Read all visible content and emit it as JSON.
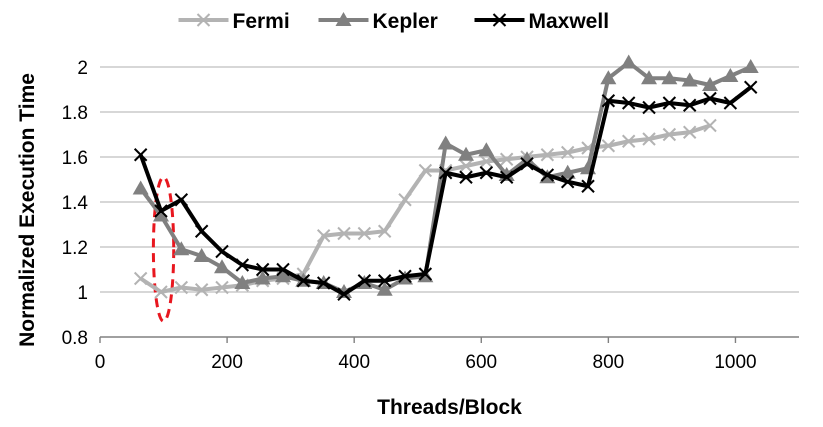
{
  "chart_data": {
    "type": "line",
    "title": "",
    "xlabel": "Threads/Block",
    "ylabel": "Normalized Execution Time",
    "xlim": [
      0,
      1100
    ],
    "ylim": [
      0.8,
      2.0
    ],
    "x_ticks": [
      0,
      200,
      400,
      600,
      800,
      1000
    ],
    "y_ticks": [
      0.8,
      1,
      1.2,
      1.4,
      1.6,
      1.8,
      2
    ],
    "x_tick_labels": [
      "0",
      "200",
      "400",
      "600",
      "800",
      "1000"
    ],
    "y_tick_labels": [
      "0.8",
      "1",
      "1.2",
      "1.4",
      "1.6",
      "1.8",
      "2"
    ],
    "grid": "horizontal",
    "legend_position": "top",
    "series": [
      {
        "name": "Fermi",
        "color": "#b3b3b3",
        "marker": "x",
        "x": [
          64,
          96,
          128,
          160,
          192,
          224,
          256,
          288,
          320,
          352,
          384,
          416,
          448,
          480,
          512,
          544,
          576,
          608,
          640,
          672,
          704,
          736,
          768,
          800,
          832,
          864,
          896,
          928,
          960
        ],
        "values": [
          1.06,
          1.0,
          1.02,
          1.01,
          1.02,
          1.03,
          1.05,
          1.06,
          1.08,
          1.25,
          1.26,
          1.26,
          1.27,
          1.41,
          1.54,
          1.54,
          1.56,
          1.58,
          1.59,
          1.6,
          1.61,
          1.62,
          1.64,
          1.65,
          1.67,
          1.68,
          1.7,
          1.71,
          1.74
        ]
      },
      {
        "name": "Kepler",
        "color": "#808080",
        "marker": "triangle",
        "x": [
          64,
          96,
          128,
          160,
          192,
          224,
          256,
          288,
          320,
          352,
          384,
          416,
          448,
          480,
          512,
          544,
          576,
          608,
          640,
          672,
          704,
          736,
          768,
          800,
          832,
          864,
          896,
          928,
          960,
          992,
          1024
        ],
        "values": [
          1.46,
          1.34,
          1.19,
          1.16,
          1.11,
          1.04,
          1.06,
          1.07,
          1.05,
          1.04,
          1.0,
          1.04,
          1.01,
          1.06,
          1.07,
          1.66,
          1.61,
          1.63,
          1.52,
          1.59,
          1.51,
          1.53,
          1.55,
          1.95,
          2.02,
          1.95,
          1.95,
          1.94,
          1.92,
          1.96,
          2.0
        ]
      },
      {
        "name": "Maxwell",
        "color": "#000000",
        "marker": "x",
        "x": [
          64,
          96,
          128,
          160,
          192,
          224,
          256,
          288,
          320,
          352,
          384,
          416,
          448,
          480,
          512,
          544,
          576,
          608,
          640,
          672,
          704,
          736,
          768,
          800,
          832,
          864,
          896,
          928,
          960,
          992,
          1024
        ],
        "values": [
          1.61,
          1.36,
          1.41,
          1.27,
          1.18,
          1.12,
          1.1,
          1.1,
          1.05,
          1.04,
          0.99,
          1.05,
          1.05,
          1.07,
          1.08,
          1.53,
          1.51,
          1.53,
          1.51,
          1.57,
          1.52,
          1.49,
          1.47,
          1.85,
          1.84,
          1.82,
          1.84,
          1.83,
          1.86,
          1.84,
          1.91
        ]
      }
    ],
    "annotations": [
      {
        "type": "dashed-ellipse",
        "color": "#e8171f",
        "center_x": 100,
        "center_y": 1.19,
        "radius_x": 16,
        "radius_y": 0.32
      }
    ]
  }
}
